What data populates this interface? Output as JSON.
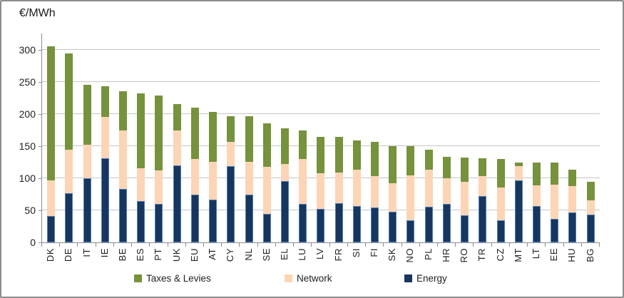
{
  "title": "€/MWh",
  "legend": {
    "items": [
      {
        "label": "Taxes & Levies",
        "color": "#76923C"
      },
      {
        "label": "Network",
        "color": "#FBD5B5"
      },
      {
        "label": "Energy",
        "color": "#17365D"
      }
    ]
  },
  "chart_data": {
    "type": "bar",
    "stacked": true,
    "title": "€/MWh",
    "ylabel": "€/MWh",
    "xlabel": "",
    "ylim": [
      0,
      325
    ],
    "yticks": [
      0,
      50,
      100,
      150,
      200,
      250,
      300
    ],
    "grid": true,
    "legend_position": "bottom",
    "categories": [
      "DK",
      "DE",
      "IT",
      "IE",
      "BE",
      "ES",
      "PT",
      "UK",
      "EU",
      "AT",
      "CY",
      "NL",
      "SE",
      "EL",
      "LU",
      "LV",
      "FR",
      "SI",
      "FI",
      "SK",
      "NO",
      "PL",
      "HR",
      "RO",
      "TR",
      "CZ",
      "MT",
      "LT",
      "EE",
      "HU",
      "BG"
    ],
    "series": [
      {
        "name": "Energy",
        "color": "#17365D",
        "border_color": "#4E81BD",
        "values": [
          41,
          77,
          100,
          131,
          83,
          65,
          60,
          120,
          75,
          67,
          119,
          74,
          44,
          96,
          60,
          52,
          61,
          57,
          55,
          48,
          34,
          56,
          60,
          42,
          72,
          34,
          97,
          57,
          37,
          47,
          43
        ]
      },
      {
        "name": "Network",
        "color": "#FBD5B5",
        "values": [
          56,
          67,
          52,
          65,
          91,
          51,
          52,
          54,
          55,
          59,
          38,
          52,
          74,
          26,
          70,
          56,
          48,
          56,
          48,
          44,
          70,
          57,
          40,
          52,
          31,
          52,
          22,
          32,
          53,
          41,
          23
        ]
      },
      {
        "name": "Taxes & Levies",
        "color": "#76923C",
        "values": [
          209,
          150,
          94,
          47,
          62,
          116,
          117,
          42,
          80,
          77,
          40,
          71,
          68,
          56,
          45,
          57,
          56,
          46,
          54,
          58,
          46,
          31,
          33,
          38,
          28,
          44,
          6,
          36,
          35,
          25,
          29
        ]
      }
    ],
    "totals": [
      306,
      294,
      246,
      243,
      236,
      232,
      229,
      216,
      210,
      203,
      197,
      197,
      186,
      178,
      175,
      165,
      165,
      159,
      157,
      150,
      150,
      144,
      133,
      132,
      131,
      130,
      125,
      125,
      125,
      113,
      95
    ]
  }
}
